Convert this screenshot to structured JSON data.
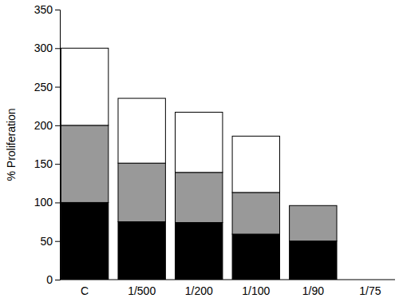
{
  "chart_data": {
    "type": "bar",
    "stacked": true,
    "y_label": "% Proliferation",
    "categories": [
      "C",
      "1/500",
      "1/200",
      "1/100",
      "1/90",
      "1/75"
    ],
    "series": [
      {
        "color": "#000000",
        "values": [
          100,
          75,
          74,
          59,
          50,
          0
        ]
      },
      {
        "color": "#999999",
        "values": [
          100,
          76,
          65,
          54,
          46,
          0
        ]
      },
      {
        "color": "#ffffff",
        "values": [
          100,
          84,
          78,
          73,
          0,
          0
        ]
      }
    ],
    "ylim": [
      0,
      350
    ],
    "yticks": [
      0,
      50,
      100,
      150,
      200,
      250,
      300,
      350
    ],
    "grid": false
  }
}
